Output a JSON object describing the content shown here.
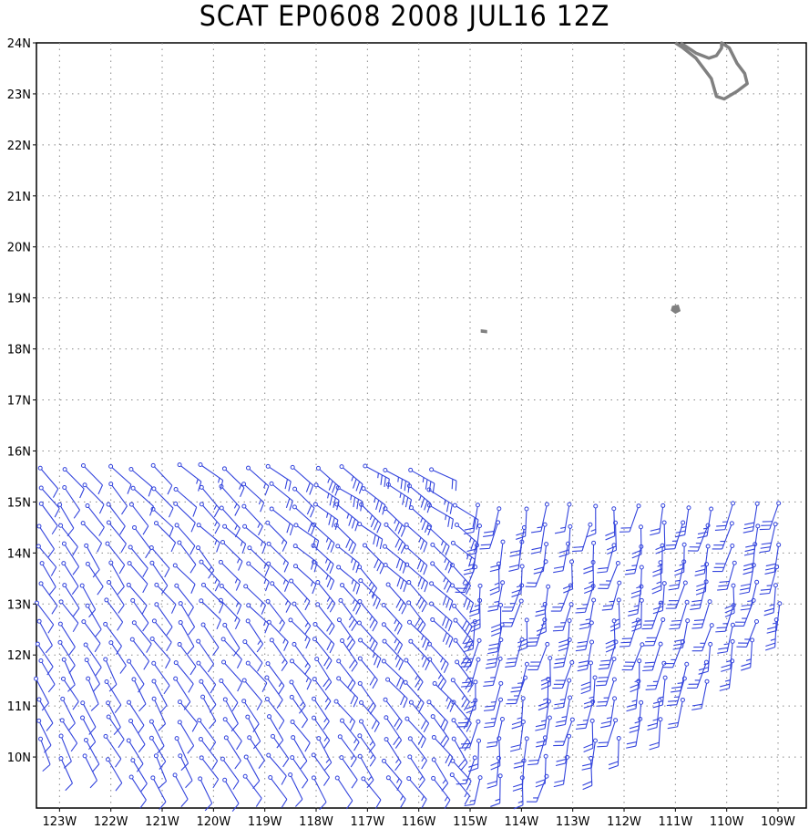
{
  "title": "SCAT EP0608 2008 JUL16 12Z",
  "map": {
    "lon_min": -123.45,
    "lon_max": -108.45,
    "lat_min": 9.0,
    "lat_max": 24.0,
    "lat_ticks": [
      {
        "value": 24,
        "label": "24N"
      },
      {
        "value": 23,
        "label": "23N"
      },
      {
        "value": 22,
        "label": "22N"
      },
      {
        "value": 21,
        "label": "21N"
      },
      {
        "value": 20,
        "label": "20N"
      },
      {
        "value": 19,
        "label": "19N"
      },
      {
        "value": 18,
        "label": "18N"
      },
      {
        "value": 17,
        "label": "17N"
      },
      {
        "value": 16,
        "label": "16N"
      },
      {
        "value": 15,
        "label": "15N"
      },
      {
        "value": 14,
        "label": "14N"
      },
      {
        "value": 13,
        "label": "13N"
      },
      {
        "value": 12,
        "label": "12N"
      },
      {
        "value": 11,
        "label": "11N"
      },
      {
        "value": 10,
        "label": "10N"
      }
    ],
    "lon_ticks": [
      {
        "value": -123,
        "label": "123W"
      },
      {
        "value": -122,
        "label": "122W"
      },
      {
        "value": -121,
        "label": "121W"
      },
      {
        "value": -120,
        "label": "120W"
      },
      {
        "value": -119,
        "label": "119W"
      },
      {
        "value": -118,
        "label": "118W"
      },
      {
        "value": -117,
        "label": "117W"
      },
      {
        "value": -116,
        "label": "116W"
      },
      {
        "value": -115,
        "label": "115W"
      },
      {
        "value": -114,
        "label": "114W"
      },
      {
        "value": -113,
        "label": "113W"
      },
      {
        "value": -112,
        "label": "112W"
      },
      {
        "value": -111,
        "label": "111W"
      },
      {
        "value": -110,
        "label": "110W"
      },
      {
        "value": -109,
        "label": "109W"
      }
    ],
    "grid": "dotted",
    "coast_color": "#808080",
    "barb_color": "#3344dd",
    "land": {
      "baja_tip": [
        [
          -110.9,
          24.0
        ],
        [
          -110.6,
          23.8
        ],
        [
          -110.35,
          23.7
        ],
        [
          -110.2,
          23.75
        ],
        [
          -110.1,
          23.9
        ],
        [
          -110.1,
          24.0
        ],
        [
          -109.95,
          23.9
        ],
        [
          -109.8,
          23.6
        ],
        [
          -109.65,
          23.4
        ],
        [
          -109.6,
          23.2
        ],
        [
          -109.8,
          23.05
        ],
        [
          -110.05,
          22.9
        ],
        [
          -110.2,
          22.95
        ],
        [
          -110.3,
          23.3
        ],
        [
          -110.6,
          23.7
        ],
        [
          -110.85,
          23.9
        ],
        [
          -111.0,
          24.0
        ]
      ],
      "socorro": [
        [
          -111.05,
          18.83
        ],
        [
          -110.95,
          18.85
        ],
        [
          -110.92,
          18.75
        ],
        [
          -111.0,
          18.71
        ],
        [
          -111.07,
          18.76
        ]
      ],
      "clarion": [
        [
          -114.78,
          18.37
        ],
        [
          -114.68,
          18.36
        ],
        [
          -114.68,
          18.32
        ],
        [
          -114.78,
          18.33
        ]
      ]
    },
    "wind_field": {
      "center_lon": -113.2,
      "center_lat": 16.8,
      "south_edge_lat": 9.6,
      "north_edge_lat": 15.9,
      "west_barb_dir_deg": 300,
      "east_barb_dir_deg": 180,
      "calm_speed_kt": 10,
      "strong_speed_kt": 30
    }
  }
}
